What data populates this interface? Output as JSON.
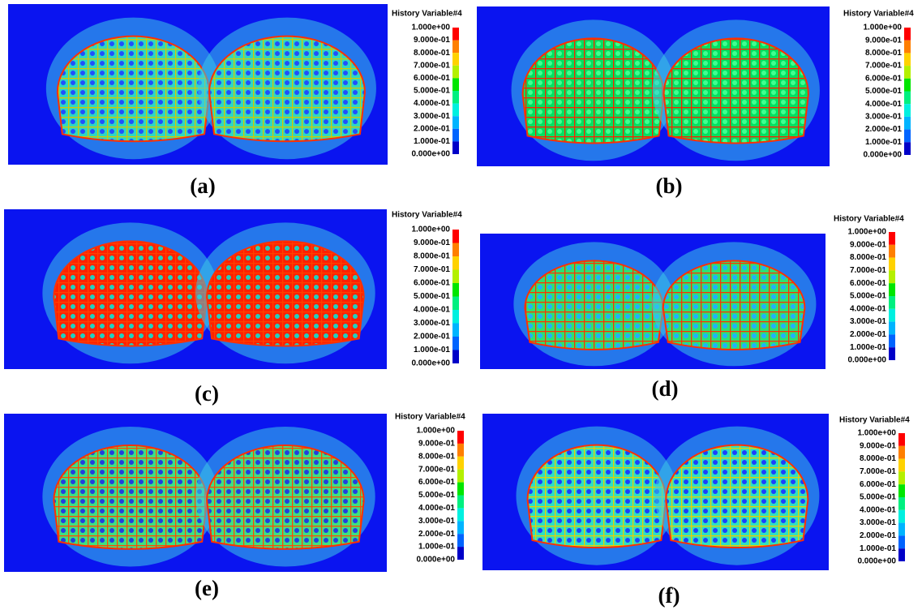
{
  "colors": [
    "#ff0000",
    "#ff7f00",
    "#ffd200",
    "#b4f000",
    "#00e600",
    "#00f080",
    "#00f0e0",
    "#00b4ff",
    "#0064ff",
    "#0000c8"
  ],
  "panels": [
    {
      "caption": "(a)",
      "legend": {
        "title": "History Variable#4",
        "labels": [
          "1.000e+00",
          "9.000e-01",
          "8.000e-01",
          "7.000e-01",
          "6.000e-01",
          "5.000e-01",
          "4.000e-01",
          "3.000e-01",
          "2.000e-01",
          "1.000e-01",
          "0.000e+00"
        ]
      }
    },
    {
      "caption": "(b)",
      "legend": {
        "title": "History Variable#4",
        "labels": [
          "1.000e+00",
          "9.000e-01",
          "8.000e-01",
          "7.000e-01",
          "6.000e-01",
          "5.000e-01",
          "4.000e-01",
          "3.000e-01",
          "2.000e-01",
          "1.000e-01",
          "0.000e+00"
        ]
      }
    },
    {
      "caption": "(c)",
      "legend": {
        "title": "History Variable#4",
        "labels": [
          "1.000e+00",
          "9.000e-01",
          "8.000e-01",
          "7.000e-01",
          "6.000e-01",
          "5.000e-01",
          "4.000e-01",
          "3.000e-01",
          "2.000e-01",
          "1.000e-01",
          "0.000e+00"
        ]
      }
    },
    {
      "caption": "(d)",
      "legend": {
        "title": "History Variable#4",
        "labels": [
          "1.000e+00",
          "9.000e-01",
          "8.000e-01",
          "7.000e-01",
          "6.000e-01",
          "5.000e-01",
          "4.000e-01",
          "3.000e-01",
          "2.000e-01",
          "1.000e-01",
          "0.000e+00"
        ]
      }
    },
    {
      "caption": "(e)",
      "legend": {
        "title": "History Variable#4",
        "labels": [
          "1.000e+00",
          "9.000e-01",
          "8.000e-01",
          "7.000e-01",
          "6.000e-01",
          "5.000e-01",
          "4.000e-01",
          "3.000e-01",
          "2.000e-01",
          "1.000e-01",
          "0.000e+00"
        ]
      }
    },
    {
      "caption": "(f)",
      "legend": {
        "title": "History Variable#4",
        "labels": [
          "1.000e+00",
          "9.000e-01",
          "8.000e-01",
          "7.000e-01",
          "6.000e-01",
          "5.000e-01",
          "4.000e-01",
          "3.000e-01",
          "2.000e-01",
          "1.000e-01",
          "0.000e+00"
        ]
      }
    }
  ]
}
